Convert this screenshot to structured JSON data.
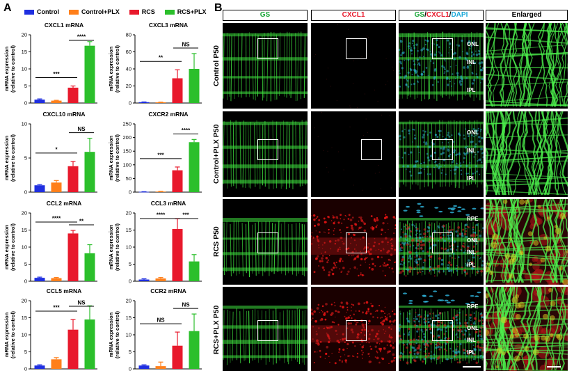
{
  "panel_labels": {
    "a": "A",
    "b": "B"
  },
  "legend": [
    {
      "label": "Control",
      "color": "#1f2fe0"
    },
    {
      "label": "Control+PLX",
      "color": "#ff7f1a"
    },
    {
      "label": "RCS",
      "color": "#e8192c"
    },
    {
      "label": "RCS+PLX",
      "color": "#2bbf2b"
    }
  ],
  "ylabel_line1": "mRNA expression",
  "ylabel_line2": "(relative to control)",
  "chart_data": [
    {
      "type": "bar",
      "title": "CXCL1 mRNA",
      "categories": [
        "Control",
        "Control+PLX",
        "RCS",
        "RCS+PLX"
      ],
      "values": [
        1,
        0.7,
        4.5,
        16.8
      ],
      "errors": [
        0.2,
        0.1,
        0.5,
        1.2
      ],
      "ylim": [
        0,
        20
      ],
      "yticks": [
        "0",
        "5",
        "10",
        "15",
        "20"
      ],
      "brackets": [
        {
          "from": 0,
          "to": 2,
          "label": "***"
        },
        {
          "from": 2,
          "to": 3,
          "label": "****"
        }
      ]
    },
    {
      "type": "bar",
      "title": "CXCL3 mRNA",
      "categories": [
        "Control",
        "Control+PLX",
        "RCS",
        "RCS+PLX"
      ],
      "values": [
        1,
        0.8,
        29,
        40
      ],
      "errors": [
        0.3,
        0.3,
        10,
        18
      ],
      "ylim": [
        0,
        80
      ],
      "yticks": [
        "0",
        "20",
        "40",
        "60",
        "80"
      ],
      "brackets": [
        {
          "from": 0,
          "to": 2,
          "label": "**"
        },
        {
          "from": 2,
          "to": 3,
          "label": "NS"
        }
      ]
    },
    {
      "type": "bar",
      "title": "CXCL10 mRNA",
      "categories": [
        "Control",
        "Control+PLX",
        "RCS",
        "RCS+PLX"
      ],
      "values": [
        1,
        1.4,
        3.8,
        5.9
      ],
      "errors": [
        0.1,
        0.3,
        0.7,
        2.0
      ],
      "ylim": [
        0,
        10
      ],
      "yticks": [
        "0",
        "5",
        "10"
      ],
      "brackets": [
        {
          "from": 0,
          "to": 2,
          "label": "*"
        },
        {
          "from": 2,
          "to": 3,
          "label": "NS"
        }
      ]
    },
    {
      "type": "bar",
      "title": "CXCR2 mRNA",
      "categories": [
        "Control",
        "Control+PLX",
        "RCS",
        "RCS+PLX"
      ],
      "values": [
        1,
        2,
        80,
        183
      ],
      "errors": [
        0.5,
        1,
        12,
        10
      ],
      "ylim": [
        0,
        250
      ],
      "yticks": [
        "0",
        "50",
        "100",
        "150",
        "200",
        "250"
      ],
      "brackets": [
        {
          "from": 0,
          "to": 2,
          "label": "***"
        },
        {
          "from": 2,
          "to": 3,
          "label": "****"
        }
      ]
    },
    {
      "type": "bar",
      "title": "CCL2 mRNA",
      "categories": [
        "Control",
        "Control+PLX",
        "RCS",
        "RCS+PLX"
      ],
      "values": [
        1,
        0.9,
        14,
        8.2
      ],
      "errors": [
        0.2,
        0.2,
        0.9,
        2.5
      ],
      "ylim": [
        0,
        20
      ],
      "yticks": [
        "0",
        "5",
        "10",
        "15",
        "20"
      ],
      "brackets": [
        {
          "from": 0,
          "to": 2,
          "label": "****"
        },
        {
          "from": 2,
          "to": 3,
          "label": "**"
        }
      ]
    },
    {
      "type": "bar",
      "title": "CCL3 mRNA",
      "categories": [
        "Control",
        "Control+PLX",
        "RCS",
        "RCS+PLX"
      ],
      "values": [
        0.5,
        0.8,
        15.3,
        5.8
      ],
      "errors": [
        0.2,
        0.3,
        3,
        2
      ],
      "ylim": [
        0,
        20
      ],
      "yticks": [
        "0",
        "5",
        "10",
        "15",
        "20"
      ],
      "brackets": [
        {
          "from": 0,
          "to": 2,
          "label": "****"
        },
        {
          "from": 2,
          "to": 3,
          "label": "***"
        }
      ]
    },
    {
      "type": "bar",
      "title": "CCL5 mRNA",
      "categories": [
        "Control",
        "Control+PLX",
        "RCS",
        "RCS+PLX"
      ],
      "values": [
        1,
        2.8,
        11.5,
        14.5
      ],
      "errors": [
        0.2,
        0.5,
        3,
        4
      ],
      "ylim": [
        0,
        20
      ],
      "yticks": [
        "0",
        "5",
        "10",
        "15",
        "20"
      ],
      "brackets": [
        {
          "from": 0,
          "to": 2,
          "label": "***"
        },
        {
          "from": 2,
          "to": 3,
          "label": "NS"
        }
      ]
    },
    {
      "type": "bar",
      "title": "CCR2 mRNA",
      "categories": [
        "Control",
        "Control+PLX",
        "RCS",
        "RCS+PLX"
      ],
      "values": [
        1,
        0.8,
        6.8,
        11.1
      ],
      "errors": [
        0.2,
        1.2,
        4,
        5
      ],
      "ylim": [
        0,
        20
      ],
      "yticks": [
        "0",
        "5",
        "10",
        "15",
        "20"
      ],
      "brackets": [
        {
          "from": 0,
          "to": 2,
          "label": "NS"
        },
        {
          "from": 2,
          "to": 3,
          "label": "NS"
        }
      ]
    }
  ],
  "micro": {
    "columns": [
      {
        "label": "GS",
        "color": "#1aa83a"
      },
      {
        "label": "CXCL1",
        "color": "#e8192c"
      },
      {
        "label": "Enlarged",
        "color": "#000000"
      }
    ],
    "merge_header": {
      "gs": "GS",
      "sep1": "/",
      "cxcl1": "CXCL1",
      "sep2": "/",
      "dapi": "DAPI",
      "gs_color": "#1aa83a",
      "cxcl1_color": "#e8192c",
      "dapi_color": "#1aa8d8"
    },
    "rows": [
      {
        "label": "Control P50",
        "layers": [
          "ONL",
          "INL",
          "IPL"
        ],
        "red": false
      },
      {
        "label": "Control+PLX P50",
        "layers": [
          "ONL",
          "INL",
          "IPL"
        ],
        "red": false
      },
      {
        "label": "RCS P50",
        "layers": [
          "RPE",
          "ONL",
          "INL",
          "IPL"
        ],
        "red": true
      },
      {
        "label": "RCS+PLX P50",
        "layers": [
          "RPE",
          "ONL",
          "INL",
          "IPL"
        ],
        "red": true
      }
    ]
  }
}
